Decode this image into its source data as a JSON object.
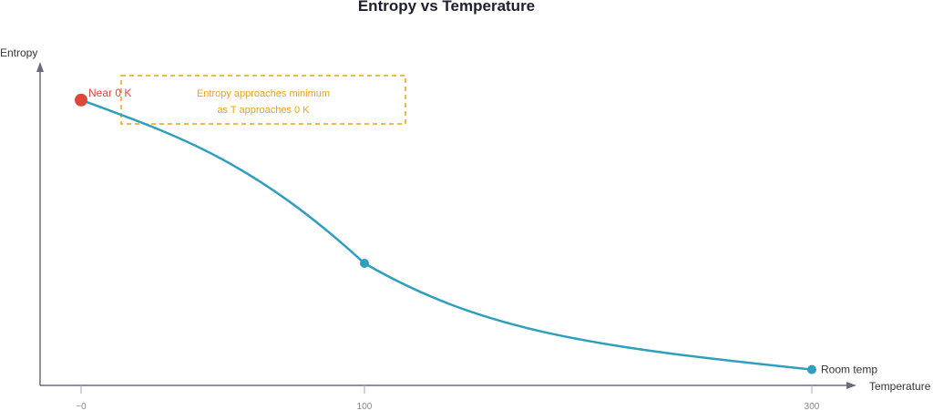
{
  "chart_data": {
    "type": "line",
    "title": "Entropy vs Temperature",
    "xlabel": "Temperature",
    "ylabel": "Entropy",
    "x_tick_labels": [
      "~0",
      "100",
      "300"
    ],
    "x": [
      0,
      100,
      300
    ],
    "y_relative": [
      0.9,
      0.385,
      0.05
    ],
    "grid": false,
    "colors": {
      "line": "#2e9fbd",
      "highlight": "#e0473a",
      "annotation": "#e8a317",
      "axis": "#6b6b80"
    },
    "points": [
      {
        "x": 0,
        "label": "Near 0 K",
        "color": "#e0473a"
      },
      {
        "x": 100,
        "label": ""
      },
      {
        "x": 300,
        "label": "Room temp",
        "color": "#2e9fbd"
      }
    ],
    "annotation": {
      "lines": [
        "Entropy approaches minimum",
        "as T approaches 0 K"
      ]
    }
  }
}
